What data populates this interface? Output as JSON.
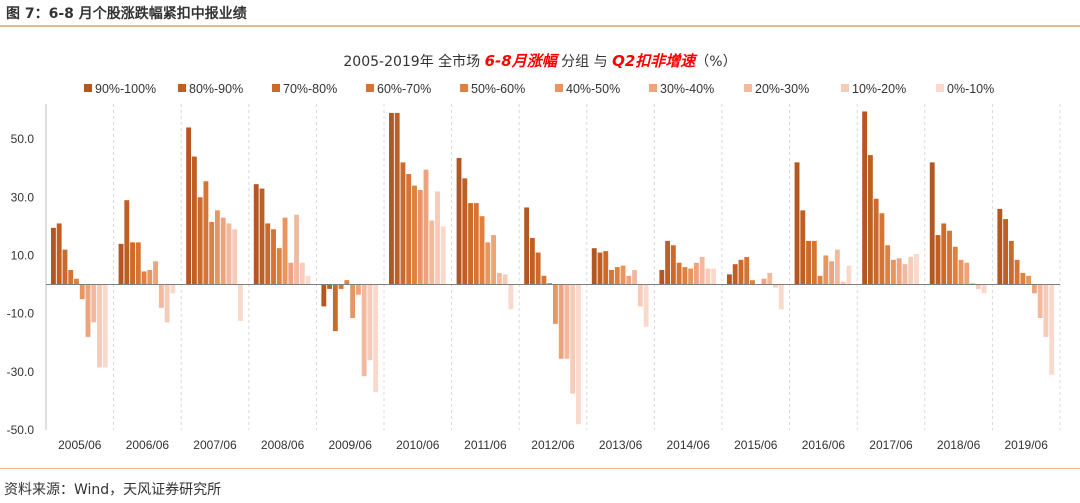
{
  "header": {
    "title": "图 7：6-8 月个股涨跌幅紧扣中报业绩"
  },
  "chart_title": {
    "part1": "2005-2019年 全市场 ",
    "emph1": "6-8月涨幅",
    "part2": " 分组 与 ",
    "emph2": "Q2扣非增速",
    "part3": "（%）"
  },
  "source": "资料来源：Wind，天风证券研究所",
  "colors": {
    "series": [
      "#b35620",
      "#bf5f24",
      "#cc6a2c",
      "#d67434",
      "#e0803e",
      "#e8955f",
      "#eda47e",
      "#f2b99e",
      "#f6cbb8",
      "#f9d9cb"
    ],
    "accent": "#ff0000",
    "rule": "#f0b48c",
    "grid": "#d9d9d9"
  },
  "chart_data": {
    "type": "bar",
    "title": "2005-2019年 全市场 6-8月涨幅 分组 与 Q2扣非增速（%）",
    "categories": [
      "2005/06",
      "2006/06",
      "2007/06",
      "2008/06",
      "2009/06",
      "2010/06",
      "2011/06",
      "2012/06",
      "2013/06",
      "2014/06",
      "2015/06",
      "2016/06",
      "2017/06",
      "2018/06",
      "2019/06"
    ],
    "ylim": [
      -50,
      60
    ],
    "yticks": [
      50,
      30,
      10,
      -10,
      -30,
      -50
    ],
    "ytick_labels": [
      "50.0",
      "30.0",
      "10.0",
      "-10.0",
      "-30.0",
      "-50.0"
    ],
    "grid": "vertical dashed separators between categories",
    "legend_position": "top",
    "series": [
      {
        "name": "90%-100%",
        "values": [
          19.5,
          14,
          54,
          34.5,
          -7.5,
          59,
          43.5,
          26.5,
          12.5,
          5,
          3.5,
          42,
          59.5,
          42,
          26
        ]
      },
      {
        "name": "80%-90%",
        "values": [
          21,
          29,
          44,
          33,
          -1.5,
          59,
          36.5,
          16,
          11,
          15,
          7,
          25.5,
          44.5,
          17,
          22.5
        ]
      },
      {
        "name": "70%-80%",
        "values": [
          12,
          14.5,
          30,
          21,
          -16,
          42,
          28,
          11,
          11.5,
          13.5,
          8.5,
          15,
          29.5,
          21,
          15
        ]
      },
      {
        "name": "60%-70%",
        "values": [
          5,
          14.5,
          35.5,
          19,
          -1.5,
          38,
          28,
          3,
          5,
          7.5,
          9.5,
          15,
          24.5,
          18.5,
          8.5
        ]
      },
      {
        "name": "50%-60%",
        "values": [
          2,
          4.5,
          21.5,
          12.5,
          1.5,
          34,
          23.5,
          0.5,
          6,
          6,
          1.5,
          3,
          13.5,
          13,
          4
        ]
      },
      {
        "name": "40%-50%",
        "values": [
          -5,
          5,
          25.5,
          23,
          -11.5,
          32.5,
          14.5,
          -13.5,
          6.5,
          5.5,
          0,
          10,
          8.5,
          8.5,
          3
        ]
      },
      {
        "name": "30%-40%",
        "values": [
          -18,
          8,
          23,
          7.5,
          -3.5,
          39.5,
          17,
          -25.5,
          3,
          7.5,
          2,
          8,
          9,
          7.5,
          -3
        ]
      },
      {
        "name": "20%-30%",
        "values": [
          -13,
          -8,
          21,
          24,
          -31.5,
          22,
          4,
          -25.5,
          5,
          9.5,
          4,
          12,
          7,
          0.5,
          -11.5
        ]
      },
      {
        "name": "10%-20%",
        "values": [
          -28.5,
          -13,
          19,
          7.5,
          -26,
          32,
          3.5,
          -37.5,
          -7.5,
          5.5,
          -1,
          1,
          9.5,
          -1.5,
          -18
        ]
      },
      {
        "name": "0%-10%",
        "values": [
          -28.5,
          -3,
          -12.5,
          3,
          -37,
          20,
          -8.5,
          -48,
          -14.5,
          5.5,
          -8.5,
          6.5,
          10.5,
          -3,
          -31
        ]
      }
    ]
  }
}
